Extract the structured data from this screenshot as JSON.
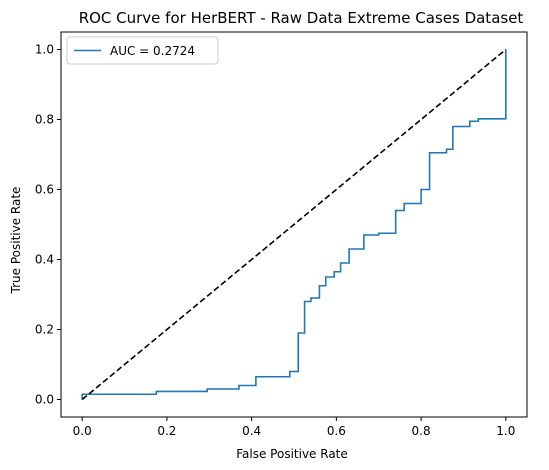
{
  "chart_data": {
    "type": "line",
    "title": "ROC Curve for HerBERT - Raw Data Extreme Cases Dataset",
    "xlabel": "False Positive Rate",
    "ylabel": "True Positive Rate",
    "xlim": [
      -0.05,
      1.05
    ],
    "ylim": [
      -0.05,
      1.05
    ],
    "x_ticks": [
      0.0,
      0.2,
      0.4,
      0.6,
      0.8,
      1.0
    ],
    "x_tick_labels": [
      "0.0",
      "0.2",
      "0.4",
      "0.6",
      "0.8",
      "1.0"
    ],
    "y_ticks": [
      0.0,
      0.2,
      0.4,
      0.6,
      0.8,
      1.0
    ],
    "y_tick_labels": [
      "0.0",
      "0.2",
      "0.4",
      "0.6",
      "0.8",
      "1.0"
    ],
    "grid": false,
    "legend_placement": "top-left",
    "series": [
      {
        "name": "AUC = 0.2724",
        "color": "#1f77b4",
        "style": "solid",
        "step": true,
        "x": [
          0.0,
          0.0,
          0.175,
          0.175,
          0.295,
          0.295,
          0.37,
          0.37,
          0.41,
          0.41,
          0.49,
          0.49,
          0.51,
          0.51,
          0.525,
          0.525,
          0.54,
          0.54,
          0.56,
          0.56,
          0.575,
          0.575,
          0.595,
          0.595,
          0.61,
          0.61,
          0.63,
          0.63,
          0.665,
          0.665,
          0.7,
          0.7,
          0.74,
          0.74,
          0.76,
          0.76,
          0.8,
          0.8,
          0.82,
          0.82,
          0.86,
          0.86,
          0.875,
          0.875,
          0.915,
          0.915,
          0.935,
          0.935,
          0.95,
          0.95,
          1.0,
          1.0
        ],
        "y": [
          0.0,
          0.015,
          0.015,
          0.023,
          0.023,
          0.03,
          0.03,
          0.04,
          0.04,
          0.065,
          0.065,
          0.08,
          0.08,
          0.19,
          0.19,
          0.28,
          0.28,
          0.29,
          0.29,
          0.325,
          0.325,
          0.35,
          0.35,
          0.365,
          0.365,
          0.39,
          0.39,
          0.43,
          0.43,
          0.47,
          0.47,
          0.475,
          0.475,
          0.54,
          0.54,
          0.56,
          0.56,
          0.6,
          0.6,
          0.705,
          0.705,
          0.715,
          0.715,
          0.78,
          0.78,
          0.795,
          0.795,
          0.802,
          0.802,
          0.802,
          0.802,
          1.0
        ]
      },
      {
        "name": "",
        "color": "#000000",
        "style": "dashed",
        "step": false,
        "x": [
          0.0,
          1.0
        ],
        "y": [
          0.0,
          1.0
        ]
      }
    ]
  }
}
